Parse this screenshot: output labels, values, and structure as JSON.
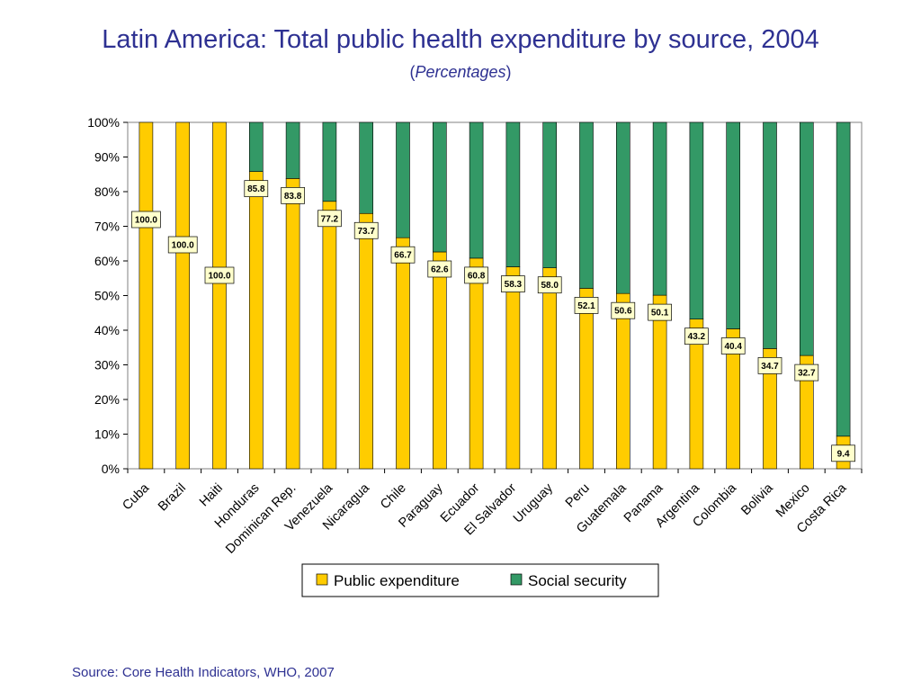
{
  "title": "Latin America: Total public health expenditure by source, 2004",
  "subtitle": {
    "open": "(",
    "text": "Percentages",
    "close": ")"
  },
  "source": "Source: Core Health Indicators, WHO, 2007",
  "colors": {
    "public": "#ffcc00",
    "social": "#339966",
    "title": "#2e3192"
  },
  "chart_data": {
    "type": "bar",
    "stacked": true,
    "categories": [
      "Cuba",
      "Brazil",
      "Haiti",
      "Honduras",
      "Dominican Rep.",
      "Venezuela",
      "Nicaragua",
      "Chile",
      "Paraguay",
      "Ecuador",
      "El Salvador",
      "Uruguay",
      "Peru",
      "Guatemala",
      "Panama",
      "Argentina",
      "Colombia",
      "Bolivia",
      "Mexico",
      "Costa Rica"
    ],
    "series": [
      {
        "name": "Public expenditure",
        "values": [
          100.0,
          100.0,
          100.0,
          85.8,
          83.8,
          77.2,
          73.7,
          66.7,
          62.6,
          60.8,
          58.3,
          58.0,
          52.1,
          50.6,
          50.1,
          43.2,
          40.4,
          34.7,
          32.7,
          9.4
        ]
      },
      {
        "name": "Social security",
        "values": [
          0.0,
          0.0,
          0.0,
          14.2,
          16.2,
          22.8,
          26.3,
          33.3,
          37.4,
          39.2,
          41.7,
          42.0,
          47.9,
          49.4,
          49.9,
          56.8,
          59.6,
          65.3,
          67.3,
          90.6
        ]
      }
    ],
    "data_labels": [
      "100.0",
      "100.0",
      "100.0",
      "85.8",
      "83.8",
      "77.2",
      "73.7",
      "66.7",
      "62.6",
      "60.8",
      "58.3",
      "58.0",
      "52.1",
      "50.6",
      "50.1",
      "43.2",
      "40.4",
      "34.7",
      "32.7",
      "9.4"
    ],
    "y_ticks": [
      "0%",
      "10%",
      "20%",
      "30%",
      "40%",
      "50%",
      "60%",
      "70%",
      "80%",
      "90%",
      "100%"
    ],
    "ylim": [
      0,
      100
    ],
    "grid": false,
    "legend": "bottom"
  }
}
